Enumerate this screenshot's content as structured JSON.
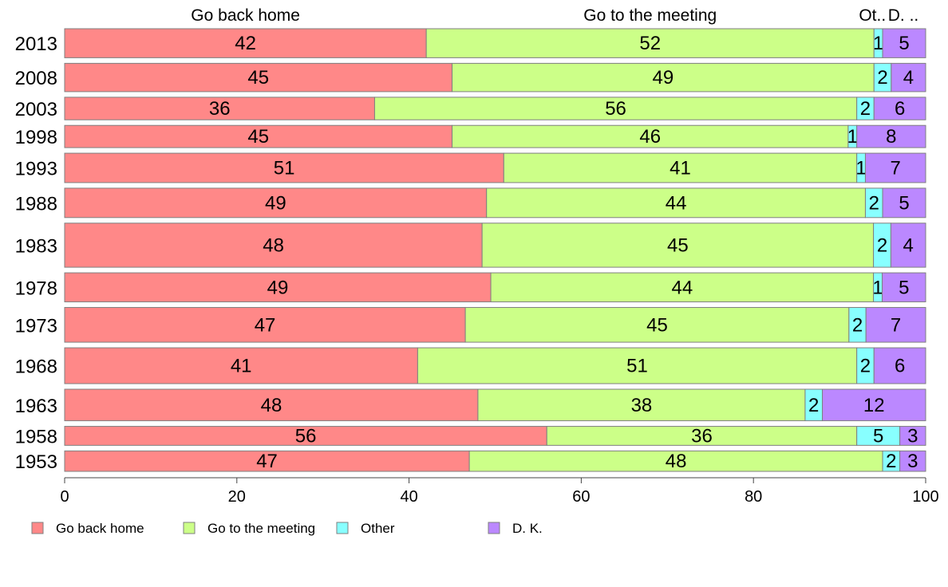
{
  "chart_data": {
    "type": "bar",
    "orientation": "horizontal",
    "stacked": true,
    "proportional_widths": true,
    "xlim": [
      0,
      100
    ],
    "xticks": [
      "0",
      "20",
      "40",
      "60",
      "80",
      "100"
    ],
    "top_labels": [
      "Go back home",
      "Go to the meeting",
      "Ot..",
      "D. .."
    ],
    "colors": [
      "#FF8888",
      "#CCFF88",
      "#88FFFF",
      "#BB88FF"
    ],
    "series": [
      {
        "name": "Go back home",
        "values": [
          42,
          45,
          36,
          45,
          51,
          49,
          48,
          49,
          47,
          41,
          48,
          56,
          47
        ]
      },
      {
        "name": "Go to the meeting",
        "values": [
          52,
          49,
          56,
          46,
          41,
          44,
          45,
          44,
          45,
          51,
          38,
          36,
          48
        ]
      },
      {
        "name": "Other",
        "values": [
          1,
          2,
          2,
          1,
          1,
          2,
          2,
          1,
          2,
          2,
          2,
          5,
          2
        ]
      },
      {
        "name": "D. K.",
        "values": [
          5,
          4,
          6,
          8,
          7,
          5,
          4,
          5,
          7,
          6,
          12,
          3,
          3
        ]
      }
    ],
    "categories": [
      "2013",
      "2008",
      "2003",
      "1998",
      "1993",
      "1988",
      "1983",
      "1978",
      "1973",
      "1968",
      "1963",
      "1958",
      "1953"
    ],
    "legend_position": "bottom-left",
    "grid": false
  }
}
